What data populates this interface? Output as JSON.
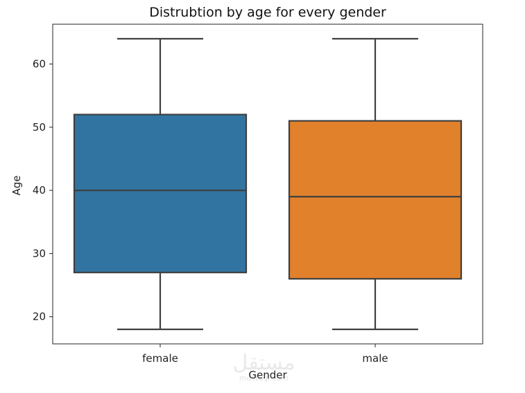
{
  "chart_data": {
    "type": "box",
    "title": "Distrubtion by age for every gender",
    "xlabel": "Gender",
    "ylabel": "Age",
    "ylim": [
      15.7,
      66.3
    ],
    "yticks": [
      20,
      30,
      40,
      50,
      60
    ],
    "grid": false,
    "categories": [
      "female",
      "male"
    ],
    "series": [
      {
        "category": "female",
        "min": 18,
        "q1": 27,
        "median": 40,
        "q3": 52,
        "max": 64,
        "color": "#3274a1"
      },
      {
        "category": "male",
        "min": 18,
        "q1": 26,
        "median": 39,
        "q3": 51,
        "max": 64,
        "color": "#e1812c"
      }
    ],
    "line_color": "#3f3f3f"
  },
  "watermark": {
    "text": "مستقل",
    "sub": "mostaql.com"
  }
}
